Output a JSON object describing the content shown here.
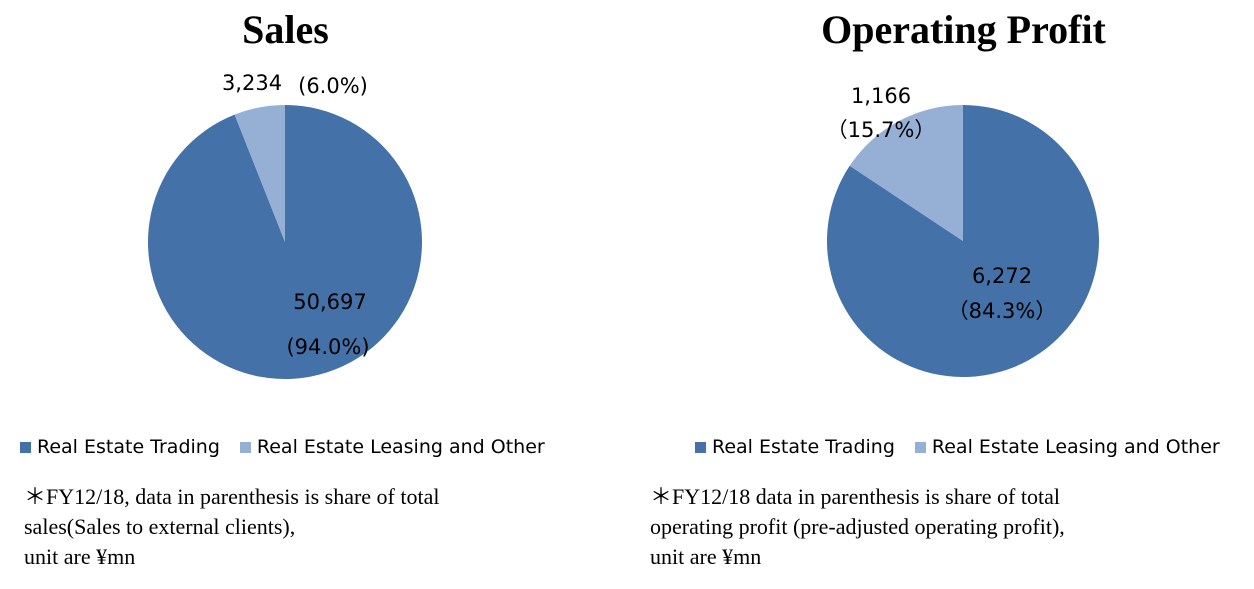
{
  "colors": {
    "trading": "#4472A8",
    "leasing": "#95AFD5"
  },
  "chart_data": [
    {
      "type": "pie",
      "title": "Sales",
      "slices": [
        {
          "name": "Real Estate Trading",
          "value": 50697,
          "share": 94.0,
          "value_label": "50,697",
          "share_label": "(94.0%)"
        },
        {
          "name": "Real Estate Leasing and Other",
          "value": 3234,
          "share": 6.0,
          "value_label": "3,234",
          "share_label": "(6.0%)"
        }
      ],
      "legend": [
        "Real Estate Trading",
        "Real Estate Leasing and Other"
      ],
      "legend_position": "bottom",
      "note": [
        "＊FY12/18, data in parenthesis is share of total",
        "sales(Sales to external clients),",
        "unit are ¥mn"
      ]
    },
    {
      "type": "pie",
      "title": "Operating Profit",
      "slices": [
        {
          "name": "Real Estate Trading",
          "value": 6272,
          "share": 84.3,
          "value_label": "6,272",
          "share_label": "（84.3%）"
        },
        {
          "name": "Real Estate Leasing and Other",
          "value": 1166,
          "share": 15.7,
          "value_label": "1,166",
          "share_label": "（15.7%）"
        }
      ],
      "legend": [
        "Real Estate Trading",
        "Real Estate Leasing and Other"
      ],
      "legend_position": "bottom",
      "note": [
        "＊FY12/18 data in parenthesis is share of total",
        "operating profit (pre-adjusted operating profit),",
        "unit are ¥mn"
      ]
    }
  ]
}
